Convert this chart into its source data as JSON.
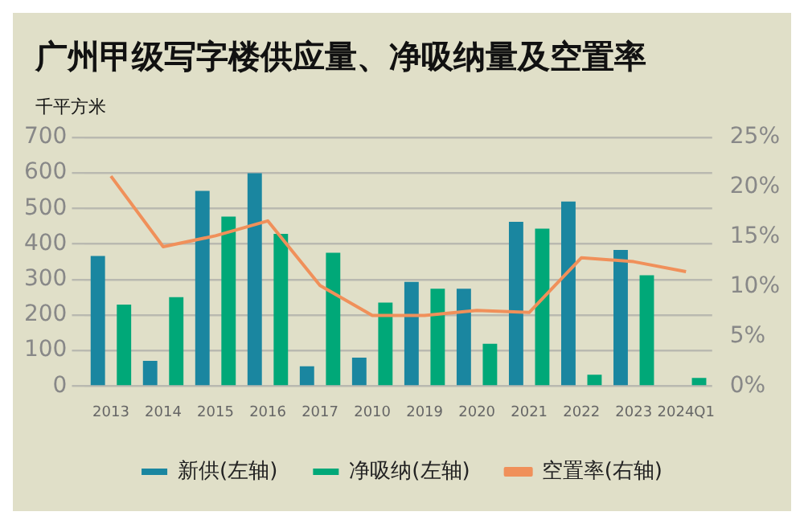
{
  "chart_data": {
    "type": "bar",
    "title": "广州甲级写字楼供应量、净吸纳量及空置率",
    "ylabel": "千平方米",
    "categories": [
      "2013",
      "2014",
      "2015",
      "2016",
      "2017",
      "2010",
      "2019",
      "2020",
      "2021",
      "2022",
      "2023",
      "2024Q1"
    ],
    "series": [
      {
        "name": "新供(左轴)",
        "color": "#1a86a0",
        "values": [
          366,
          71,
          549,
          599,
          56,
          80,
          293,
          274,
          462,
          519,
          383,
          null
        ]
      },
      {
        "name": "净吸纳(左轴)",
        "color": "#00a878",
        "values": [
          229,
          250,
          477,
          428,
          375,
          235,
          274,
          119,
          443,
          32,
          312,
          23
        ]
      },
      {
        "name": "空置率(右轴)",
        "type": "line",
        "axis": "y2",
        "color": "#f0905a",
        "marker": "none",
        "values": [
          21.1,
          14.0,
          15.1,
          16.6,
          10.1,
          7.1,
          7.1,
          7.6,
          7.4,
          12.9,
          12.5,
          11.5
        ]
      }
    ],
    "ylim": [
      0,
      700
    ],
    "yticks": [
      0,
      100,
      200,
      300,
      400,
      500,
      600,
      700
    ],
    "y2lim": [
      0,
      25
    ],
    "y2ticks": [
      {
        "value": 0,
        "label": "0%"
      },
      {
        "value": 5,
        "label": "5%"
      },
      {
        "value": 10,
        "label": "10%"
      },
      {
        "value": 15,
        "label": "15%"
      },
      {
        "value": 20,
        "label": "20%"
      },
      {
        "value": 25,
        "label": "25%"
      }
    ],
    "grid": "y",
    "legend": "bottom"
  }
}
